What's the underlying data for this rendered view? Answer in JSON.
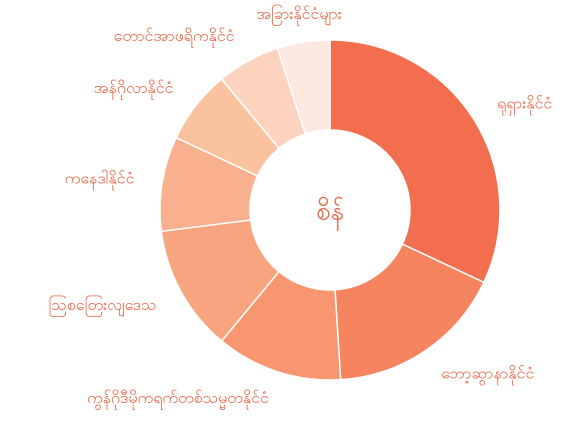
{
  "chart_data": {
    "type": "donut",
    "center_label": "စိန်",
    "categories": [
      "ရုရှားနိုင်ငံ",
      "ဘော့ဆွာနာနိုင်ငံ",
      "ကွန်ဂိုဒီမိုကရက်တစ်သမ္မတနိုင်ငံ",
      "သြစတြေးလျဒေသ",
      "ကနေဒါနိုင်ငံ",
      "အန်ဂိုလာနိုင်ငံ",
      "တောင်အာဖရိကနိုင်ငံ",
      "အခြားနိုင်ငံများ"
    ],
    "values": [
      32,
      17,
      12,
      12,
      9,
      7,
      6,
      5
    ],
    "colors": [
      "#f26e4f",
      "#f5845f",
      "#f7966f",
      "#f8a47f",
      "#f9b08e",
      "#fac29f",
      "#fcd3bf",
      "#fde8df"
    ]
  }
}
